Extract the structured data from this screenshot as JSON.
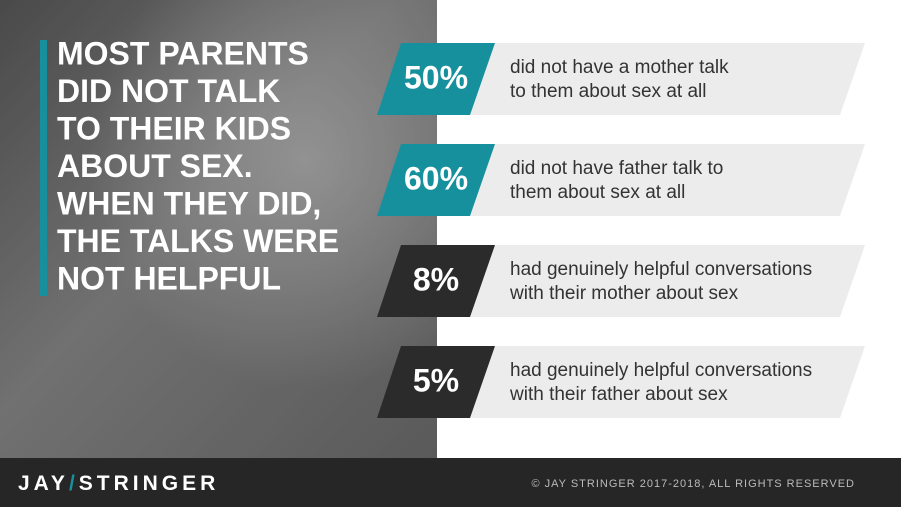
{
  "headline": [
    "MOST PARENTS",
    "DID NOT TALK",
    "TO THEIR KIDS",
    "ABOUT SEX.",
    "WHEN THEY DID,",
    "THE TALKS WERE",
    "NOT HELPFUL"
  ],
  "stats": [
    {
      "figure": "50%",
      "lines": [
        "did not have a mother talk",
        "to them about sex at all"
      ],
      "color": "#17909e"
    },
    {
      "figure": "60%",
      "lines": [
        "did not have father talk to",
        "them about sex at all"
      ],
      "color": "#17909e"
    },
    {
      "figure": "8%",
      "lines": [
        "had genuinely helpful conversations",
        "with their mother about sex"
      ],
      "color": "#2b2b2b"
    },
    {
      "figure": "5%",
      "lines": [
        "had genuinely helpful conversations",
        "with their father about sex"
      ],
      "color": "#2b2b2b"
    }
  ],
  "footer": {
    "logo": [
      "JAY",
      "/",
      "STRINGER"
    ],
    "copyright": "© JAY STRINGER 2017-2018, ALL RIGHTS RESERVED"
  }
}
